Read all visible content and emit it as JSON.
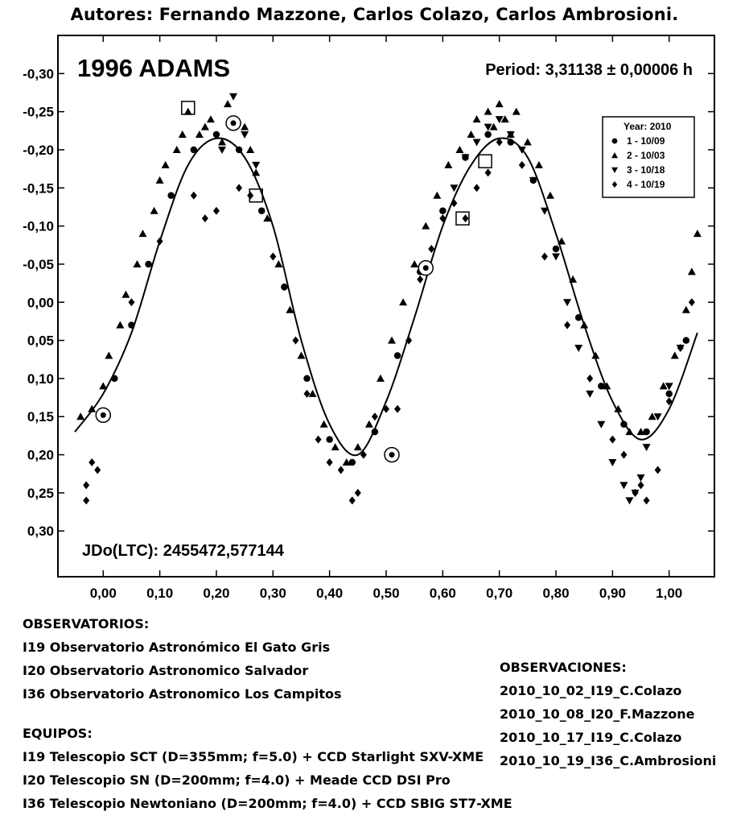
{
  "header": {
    "authors": "Autores: Fernando Mazzone, Carlos Colazo, Carlos Ambrosioni."
  },
  "chart_data": {
    "type": "scatter",
    "title": "1996 ADAMS",
    "period_label": "Period: 3,31138 ± 0,00006 h",
    "jd_label": "JDo(LTC): 2455472,577144",
    "xlim": [
      -0.08,
      1.08
    ],
    "ylim": [
      -0.35,
      0.36
    ],
    "y_inverted": true,
    "x_ticks": [
      "0,00",
      "0,10",
      "0,20",
      "0,30",
      "0,40",
      "0,50",
      "0,60",
      "0,70",
      "0,80",
      "0,90",
      "1,00"
    ],
    "x_tick_values": [
      0,
      0.1,
      0.2,
      0.3,
      0.4,
      0.5,
      0.6,
      0.7,
      0.8,
      0.9,
      1.0
    ],
    "y_ticks": [
      "-0,30",
      "-0,25",
      "-0,20",
      "-0,15",
      "-0,10",
      "-0,05",
      "0,00",
      "0,05",
      "0,10",
      "0,15",
      "0,20",
      "0,25",
      "0,30"
    ],
    "y_tick_values": [
      -0.3,
      -0.25,
      -0.2,
      -0.15,
      -0.1,
      -0.05,
      0.0,
      0.05,
      0.1,
      0.15,
      0.2,
      0.25,
      0.3
    ],
    "legend": {
      "title": "Year: 2010",
      "placement": "top-right",
      "entries": [
        {
          "marker": "circle",
          "label": "1 - 10/09"
        },
        {
          "marker": "triangle-up",
          "label": "2 - 10/03"
        },
        {
          "marker": "triangle-down",
          "label": "3 - 10/18"
        },
        {
          "marker": "diamond",
          "label": "4 - 10/19"
        }
      ]
    },
    "fit_curve": {
      "x": [
        -0.05,
        0.0,
        0.05,
        0.1,
        0.15,
        0.2,
        0.25,
        0.3,
        0.35,
        0.4,
        0.45,
        0.5,
        0.55,
        0.6,
        0.65,
        0.7,
        0.75,
        0.8,
        0.85,
        0.9,
        0.95,
        1.0,
        1.05
      ],
      "y": [
        0.17,
        0.12,
        0.04,
        -0.08,
        -0.18,
        -0.215,
        -0.19,
        -0.1,
        0.05,
        0.16,
        0.2,
        0.13,
        0.02,
        -0.1,
        -0.18,
        -0.215,
        -0.19,
        -0.09,
        0.03,
        0.13,
        0.18,
        0.14,
        0.04
      ]
    },
    "series": [
      {
        "name": "1 - 10/09",
        "marker": "circle",
        "x": [
          0.02,
          0.05,
          0.08,
          0.12,
          0.16,
          0.2,
          0.24,
          0.28,
          0.32,
          0.36,
          0.4,
          0.44,
          0.48,
          0.52,
          0.56,
          0.6,
          0.64,
          0.68,
          0.72,
          0.76,
          0.8,
          0.84,
          0.88,
          0.92,
          0.96,
          1.0,
          1.03
        ],
        "y": [
          0.1,
          0.03,
          -0.05,
          -0.14,
          -0.2,
          -0.22,
          -0.2,
          -0.12,
          -0.02,
          0.1,
          0.18,
          0.21,
          0.17,
          0.07,
          -0.04,
          -0.12,
          -0.19,
          -0.22,
          -0.21,
          -0.16,
          -0.07,
          0.02,
          0.11,
          0.16,
          0.17,
          0.12,
          0.05
        ]
      },
      {
        "name": "2 - 10/03",
        "marker": "triangle-up",
        "x": [
          -0.04,
          -0.02,
          0.0,
          0.01,
          0.03,
          0.04,
          0.06,
          0.07,
          0.09,
          0.1,
          0.11,
          0.13,
          0.14,
          0.15,
          0.17,
          0.18,
          0.19,
          0.21,
          0.22,
          0.23,
          0.25,
          0.26,
          0.27,
          0.29,
          0.31,
          0.33,
          0.35,
          0.37,
          0.39,
          0.41,
          0.43,
          0.45,
          0.47,
          0.49,
          0.51,
          0.53,
          0.55,
          0.57,
          0.59,
          0.61,
          0.63,
          0.65,
          0.66,
          0.68,
          0.69,
          0.7,
          0.71,
          0.72,
          0.73,
          0.75,
          0.77,
          0.79,
          0.81,
          0.83,
          0.85,
          0.87,
          0.89,
          0.91,
          0.93,
          0.95,
          0.97,
          0.99,
          1.01,
          1.03,
          1.04,
          1.05
        ],
        "y": [
          0.15,
          0.14,
          0.11,
          0.07,
          0.03,
          -0.01,
          -0.05,
          -0.09,
          -0.12,
          -0.16,
          -0.18,
          -0.2,
          -0.22,
          -0.25,
          -0.22,
          -0.23,
          -0.24,
          -0.21,
          -0.26,
          -0.24,
          -0.23,
          -0.2,
          -0.17,
          -0.11,
          -0.05,
          0.01,
          0.07,
          0.12,
          0.16,
          0.19,
          0.21,
          0.19,
          0.16,
          0.1,
          0.05,
          0.0,
          -0.05,
          -0.1,
          -0.14,
          -0.18,
          -0.2,
          -0.22,
          -0.24,
          -0.25,
          -0.23,
          -0.26,
          -0.24,
          -0.22,
          -0.25,
          -0.21,
          -0.18,
          -0.14,
          -0.08,
          -0.03,
          0.03,
          0.07,
          0.11,
          0.14,
          0.17,
          0.17,
          0.15,
          0.11,
          0.07,
          0.01,
          -0.04,
          -0.09
        ]
      },
      {
        "name": "3 - 10/18",
        "marker": "triangle-down",
        "x": [
          0.62,
          0.64,
          0.66,
          0.68,
          0.7,
          0.72,
          0.74,
          0.76,
          0.78,
          0.8,
          0.82,
          0.84,
          0.86,
          0.88,
          0.9,
          0.92,
          0.93,
          0.94,
          0.95,
          0.96,
          0.98,
          1.0,
          1.02,
          0.21,
          0.23,
          0.25,
          0.27
        ],
        "y": [
          -0.15,
          -0.19,
          -0.21,
          -0.23,
          -0.24,
          -0.22,
          -0.2,
          -0.16,
          -0.12,
          -0.06,
          0.0,
          0.06,
          0.12,
          0.16,
          0.21,
          0.24,
          0.26,
          0.25,
          0.23,
          0.19,
          0.15,
          0.11,
          0.06,
          -0.2,
          -0.27,
          -0.22,
          -0.18
        ]
      },
      {
        "name": "4 - 10/19",
        "marker": "diamond",
        "x": [
          -0.03,
          -0.03,
          -0.02,
          -0.01,
          0.05,
          0.1,
          0.16,
          0.18,
          0.2,
          0.24,
          0.26,
          0.3,
          0.32,
          0.34,
          0.36,
          0.38,
          0.4,
          0.42,
          0.44,
          0.45,
          0.46,
          0.48,
          0.5,
          0.52,
          0.54,
          0.56,
          0.58,
          0.6,
          0.62,
          0.64,
          0.66,
          0.68,
          0.7,
          0.74,
          0.78,
          0.82,
          0.86,
          0.9,
          0.92,
          0.94,
          0.95,
          0.96,
          0.98,
          1.0,
          1.02,
          1.04
        ],
        "y": [
          0.24,
          0.26,
          0.21,
          0.22,
          0.0,
          -0.08,
          -0.14,
          -0.11,
          -0.12,
          -0.15,
          -0.14,
          -0.06,
          -0.02,
          0.05,
          0.12,
          0.18,
          0.21,
          0.22,
          0.26,
          0.25,
          0.2,
          0.15,
          0.14,
          0.14,
          0.05,
          -0.03,
          -0.07,
          -0.11,
          -0.13,
          -0.11,
          -0.15,
          -0.17,
          -0.21,
          -0.18,
          -0.06,
          0.03,
          0.1,
          0.18,
          0.2,
          0.25,
          0.24,
          0.26,
          0.22,
          0.13,
          0.06,
          0.0
        ]
      }
    ],
    "highlighted_points": [
      {
        "marker": "square",
        "x": 0.15,
        "y": -0.255
      },
      {
        "marker": "circle",
        "x": 0.23,
        "y": -0.235
      },
      {
        "marker": "square",
        "x": 0.27,
        "y": -0.14
      },
      {
        "marker": "circle",
        "x": 0.0,
        "y": 0.148
      },
      {
        "marker": "circle",
        "x": 0.51,
        "y": 0.2
      },
      {
        "marker": "circle",
        "x": 0.57,
        "y": -0.045
      },
      {
        "marker": "square",
        "x": 0.635,
        "y": -0.11
      },
      {
        "marker": "square",
        "x": 0.675,
        "y": -0.185
      }
    ]
  },
  "notes": {
    "observatorios_title": "OBSERVATORIOS:",
    "observatorios": [
      "I19 Observatorio Astronómico El Gato Gris",
      "I20 Observatorio Astronomico Salvador",
      "I36 Observatorio Astronomico Los Campitos"
    ],
    "equipos_title": "EQUIPOS:",
    "equipos": [
      "I19 Telescopio SCT (D=355mm; f=5.0) + CCD Starlight SXV-XME",
      "I20 Telescopio SN (D=200mm; f=4.0) + Meade CCD DSI Pro",
      "I36 Telescopio Newtoniano (D=200mm; f=4.0) + CCD SBIG ST7-XME"
    ],
    "observaciones_title": "OBSERVACIONES:",
    "observaciones": [
      "2010_10_02_I19_C.Colazo",
      "2010_10_08_I20_F.Mazzone",
      "2010_10_17_I19_C.Colazo",
      "2010_10_19_I36_C.Ambrosioni"
    ]
  }
}
